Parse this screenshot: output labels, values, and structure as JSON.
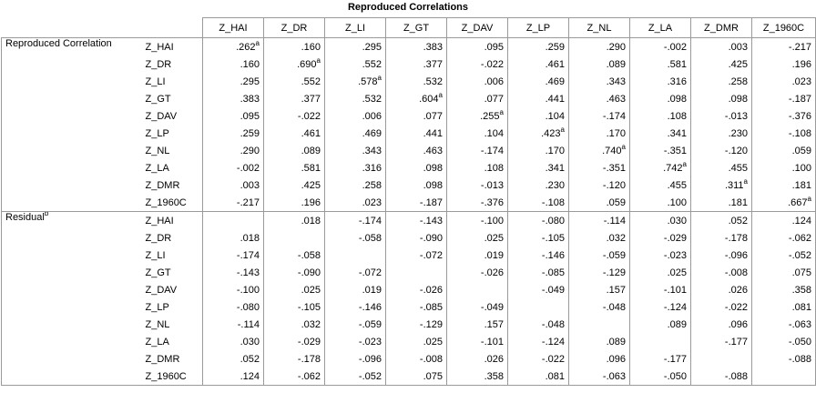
{
  "title": "Reproduced Correlations",
  "columns": [
    "Z_HAI",
    "Z_DR",
    "Z_LI",
    "Z_GT",
    "Z_DAV",
    "Z_LP",
    "Z_NL",
    "Z_LA",
    "Z_DMR",
    "Z_1960C"
  ],
  "groups": [
    {
      "label": "Reproduced Correlation",
      "label_sup": "",
      "rows": [
        {
          "name": "Z_HAI",
          "cells": [
            ".262",
            ".160",
            ".295",
            ".383",
            ".095",
            ".259",
            ".290",
            "-.002",
            ".003",
            "-.217"
          ]
        },
        {
          "name": "Z_DR",
          "cells": [
            ".160",
            ".690",
            ".552",
            ".377",
            "-.022",
            ".461",
            ".089",
            ".581",
            ".425",
            ".196"
          ]
        },
        {
          "name": "Z_LI",
          "cells": [
            ".295",
            ".552",
            ".578",
            ".532",
            ".006",
            ".469",
            ".343",
            ".316",
            ".258",
            ".023"
          ]
        },
        {
          "name": "Z_GT",
          "cells": [
            ".383",
            ".377",
            ".532",
            ".604",
            ".077",
            ".441",
            ".463",
            ".098",
            ".098",
            "-.187"
          ]
        },
        {
          "name": "Z_DAV",
          "cells": [
            ".095",
            "-.022",
            ".006",
            ".077",
            ".255",
            ".104",
            "-.174",
            ".108",
            "-.013",
            "-.376"
          ]
        },
        {
          "name": "Z_LP",
          "cells": [
            ".259",
            ".461",
            ".469",
            ".441",
            ".104",
            ".423",
            ".170",
            ".341",
            ".230",
            "-.108"
          ]
        },
        {
          "name": "Z_NL",
          "cells": [
            ".290",
            ".089",
            ".343",
            ".463",
            "-.174",
            ".170",
            ".740",
            "-.351",
            "-.120",
            ".059"
          ]
        },
        {
          "name": "Z_LA",
          "cells": [
            "-.002",
            ".581",
            ".316",
            ".098",
            ".108",
            ".341",
            "-.351",
            ".742",
            ".455",
            ".100"
          ]
        },
        {
          "name": "Z_DMR",
          "cells": [
            ".003",
            ".425",
            ".258",
            ".098",
            "-.013",
            ".230",
            "-.120",
            ".455",
            ".311",
            ".181"
          ]
        },
        {
          "name": "Z_1960C",
          "cells": [
            "-.217",
            ".196",
            ".023",
            "-.187",
            "-.376",
            "-.108",
            ".059",
            ".100",
            ".181",
            ".667"
          ]
        }
      ]
    },
    {
      "label": "Residual",
      "label_sup": "b",
      "rows": [
        {
          "name": "Z_HAI",
          "cells": [
            "",
            ".018",
            "-.174",
            "-.143",
            "-.100",
            "-.080",
            "-.114",
            ".030",
            ".052",
            ".124"
          ]
        },
        {
          "name": "Z_DR",
          "cells": [
            ".018",
            "",
            "-.058",
            "-.090",
            ".025",
            "-.105",
            ".032",
            "-.029",
            "-.178",
            "-.062"
          ]
        },
        {
          "name": "Z_LI",
          "cells": [
            "-.174",
            "-.058",
            "",
            "-.072",
            ".019",
            "-.146",
            "-.059",
            "-.023",
            "-.096",
            "-.052"
          ]
        },
        {
          "name": "Z_GT",
          "cells": [
            "-.143",
            "-.090",
            "-.072",
            "",
            "-.026",
            "-.085",
            "-.129",
            ".025",
            "-.008",
            ".075"
          ]
        },
        {
          "name": "Z_DAV",
          "cells": [
            "-.100",
            ".025",
            ".019",
            "-.026",
            "",
            "-.049",
            ".157",
            "-.101",
            ".026",
            ".358"
          ]
        },
        {
          "name": "Z_LP",
          "cells": [
            "-.080",
            "-.105",
            "-.146",
            "-.085",
            "-.049",
            "",
            "-.048",
            "-.124",
            "-.022",
            ".081"
          ]
        },
        {
          "name": "Z_NL",
          "cells": [
            "-.114",
            ".032",
            "-.059",
            "-.129",
            ".157",
            "-.048",
            "",
            ".089",
            ".096",
            "-.063"
          ]
        },
        {
          "name": "Z_LA",
          "cells": [
            ".030",
            "-.029",
            "-.023",
            ".025",
            "-.101",
            "-.124",
            ".089",
            "",
            "-.177",
            "-.050"
          ]
        },
        {
          "name": "Z_DMR",
          "cells": [
            ".052",
            "-.178",
            "-.096",
            "-.008",
            ".026",
            "-.022",
            ".096",
            "-.177",
            "",
            "-.088"
          ]
        },
        {
          "name": "Z_1960C",
          "cells": [
            ".124",
            "-.062",
            "-.052",
            ".075",
            ".358",
            ".081",
            "-.063",
            "-.050",
            "-.088",
            ""
          ]
        }
      ]
    }
  ],
  "diagonal_sup": "a"
}
